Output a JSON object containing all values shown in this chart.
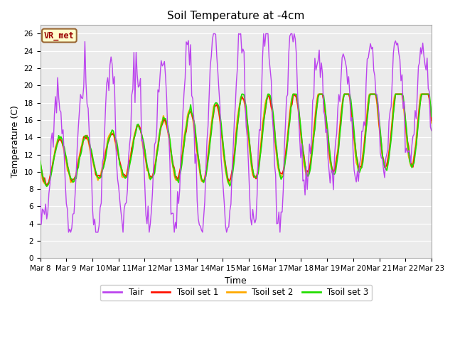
{
  "title": "Soil Temperature at -4cm",
  "xlabel": "Time",
  "ylabel": "Temperature (C)",
  "ylim": [
    0,
    27
  ],
  "tair_color": "#bb44ee",
  "tsoil1_color": "#ff1100",
  "tsoil2_color": "#ffaa00",
  "tsoil3_color": "#22dd00",
  "legend_labels": [
    "Tair",
    "Tsoil set 1",
    "Tsoil set 2",
    "Tsoil set 3"
  ],
  "vr_label": "VR_met",
  "xtick_labels": [
    "Mar 8",
    "Mar 9",
    "Mar 10",
    "Mar 11",
    "Mar 12",
    "Mar 13",
    "Mar 14",
    "Mar 15",
    "Mar 16",
    "Mar 17",
    "Mar 18",
    "Mar 19",
    "Mar 20",
    "Mar 21",
    "Mar 22",
    "Mar 23"
  ],
  "title_fontsize": 11,
  "axis_label_fontsize": 9,
  "tick_fontsize": 7.5
}
